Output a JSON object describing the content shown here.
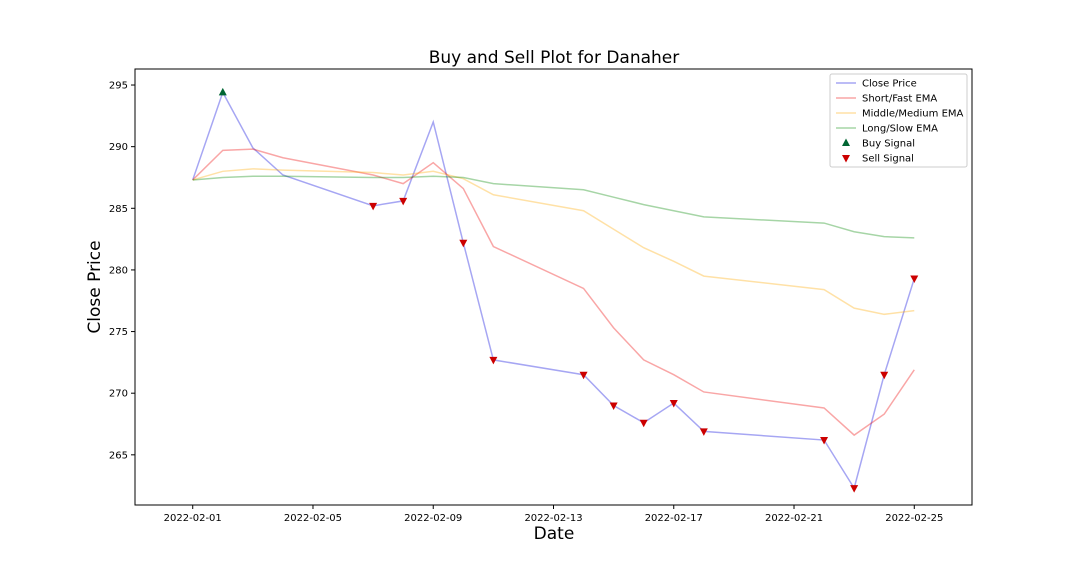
{
  "chart_data": {
    "type": "line",
    "title": "Buy and Sell Plot for Danaher",
    "xlabel": "Date",
    "ylabel": "Close Price",
    "x_ticks": [
      "2022-02-01",
      "2022-02-05",
      "2022-02-09",
      "2022-02-13",
      "2022-02-17",
      "2022-02-21",
      "2022-02-25"
    ],
    "y_ticks": [
      265,
      270,
      275,
      280,
      285,
      290,
      295
    ],
    "xlim": [
      "2022-01-30",
      "2022-02-26"
    ],
    "ylim": [
      261,
      296
    ],
    "grid": false,
    "legend": "top-right",
    "dates": [
      "2022-02-01",
      "2022-02-02",
      "2022-02-03",
      "2022-02-04",
      "2022-02-07",
      "2022-02-08",
      "2022-02-09",
      "2022-02-10",
      "2022-02-11",
      "2022-02-14",
      "2022-02-15",
      "2022-02-16",
      "2022-02-17",
      "2022-02-18",
      "2022-02-22",
      "2022-02-23",
      "2022-02-24",
      "2022-02-25"
    ],
    "series": [
      {
        "name": "Close Price",
        "color": "#0000dd",
        "values": [
          287.3,
          294.4,
          289.9,
          287.7,
          285.2,
          285.6,
          292.0,
          282.2,
          272.7,
          271.5,
          269.0,
          267.6,
          269.2,
          266.9,
          266.2,
          262.3,
          271.5,
          279.3
        ]
      },
      {
        "name": "Short/Fast EMA",
        "color": "#ee0000",
        "values": [
          287.3,
          289.7,
          289.8,
          289.1,
          287.7,
          287.0,
          288.7,
          286.6,
          281.9,
          278.5,
          275.3,
          272.7,
          271.5,
          270.1,
          268.8,
          266.6,
          268.3,
          271.9
        ]
      },
      {
        "name": "Middle/Medium EMA",
        "color": "#ffaa00",
        "values": [
          287.3,
          288.0,
          288.2,
          288.1,
          287.9,
          287.7,
          288.0,
          287.4,
          286.1,
          284.8,
          283.3,
          281.8,
          280.7,
          279.5,
          278.4,
          276.9,
          276.4,
          276.7
        ]
      },
      {
        "name": "Long/Slow EMA",
        "color": "#008800",
        "values": [
          287.3,
          287.5,
          287.6,
          287.6,
          287.5,
          287.5,
          287.6,
          287.5,
          287.0,
          286.5,
          285.9,
          285.3,
          284.8,
          284.3,
          283.8,
          283.1,
          282.7,
          282.6
        ]
      }
    ],
    "buy_signal": {
      "name": "Buy Signal",
      "color": "#006633",
      "points": [
        {
          "x": "2022-02-02",
          "y": 294.4
        }
      ]
    },
    "sell_signal": {
      "name": "Sell Signal",
      "color": "#cc0000",
      "points": [
        {
          "x": "2022-02-07",
          "y": 285.2
        },
        {
          "x": "2022-02-08",
          "y": 285.6
        },
        {
          "x": "2022-02-10",
          "y": 282.2
        },
        {
          "x": "2022-02-11",
          "y": 272.7
        },
        {
          "x": "2022-02-14",
          "y": 271.5
        },
        {
          "x": "2022-02-15",
          "y": 269.0
        },
        {
          "x": "2022-02-16",
          "y": 267.6
        },
        {
          "x": "2022-02-17",
          "y": 269.2
        },
        {
          "x": "2022-02-18",
          "y": 266.9
        },
        {
          "x": "2022-02-22",
          "y": 266.2
        },
        {
          "x": "2022-02-23",
          "y": 262.3
        },
        {
          "x": "2022-02-24",
          "y": 271.5
        },
        {
          "x": "2022-02-25",
          "y": 279.3
        }
      ]
    }
  }
}
